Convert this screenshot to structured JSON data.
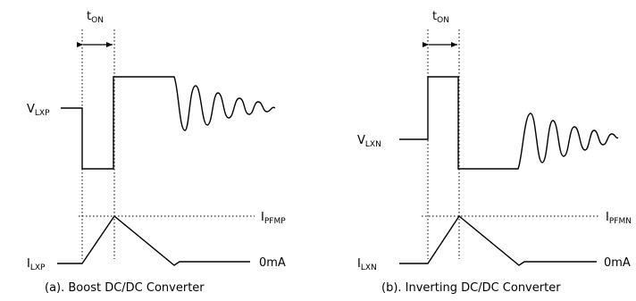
{
  "diagram_a": {
    "ton_label": "t",
    "ton_sub": "ON",
    "v_label": "V",
    "v_sub": "LXP",
    "i_label": "I",
    "i_sub": "LXP",
    "ipeak_label": "I",
    "ipeak_sub": "PFMP",
    "zero_label": "0mA",
    "caption": "(a). Boost DC/DC Converter"
  },
  "diagram_b": {
    "ton_label": "t",
    "ton_sub": "ON",
    "v_label": "V",
    "v_sub": "LXN",
    "i_label": "I",
    "i_sub": "LXN",
    "ipeak_label": "I",
    "ipeak_sub": "PFMN",
    "zero_label": "0mA",
    "caption": "(b). Inverting DC/DC Converter"
  }
}
